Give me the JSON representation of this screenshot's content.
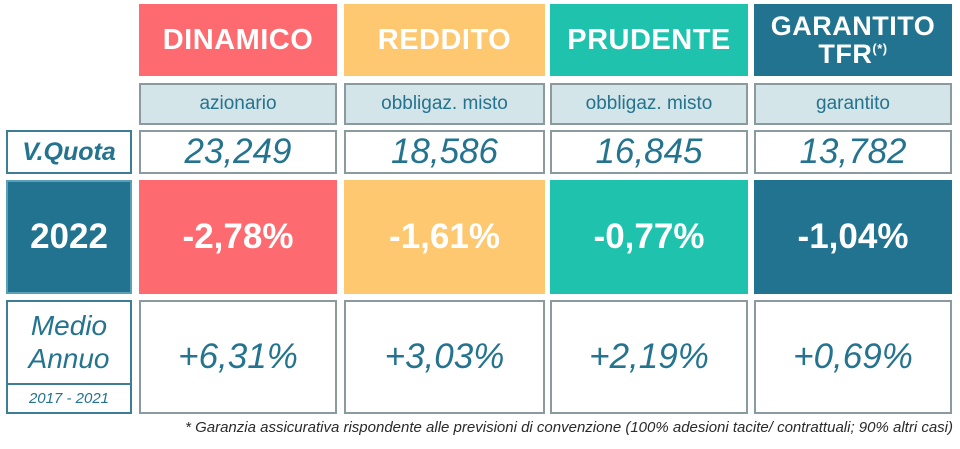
{
  "funds": [
    {
      "name": "DINAMICO",
      "type": "azionario",
      "quota": "23,249",
      "y2022": "-2,78%",
      "avg": "+6,31%"
    },
    {
      "name": "REDDITO",
      "type": "obbligaz. misto",
      "quota": "18,586",
      "y2022": "-1,61%",
      "avg": "+3,03%"
    },
    {
      "name": "PRUDENTE",
      "type": "obbligaz. misto",
      "quota": "16,845",
      "y2022": "-0,77%",
      "avg": "+2,19%"
    },
    {
      "name": "GARANTITO",
      "name_line2": "TFR",
      "name_sup": "(*)",
      "type": "garantito",
      "quota": "13,782",
      "y2022": "-1,04%",
      "avg": "+0,69%"
    }
  ],
  "rows": {
    "quota_label": "V.Quota",
    "year_label": "2022",
    "avg_label_line1": "Medio",
    "avg_label_line2": "Annuo",
    "avg_period": "2017 - 2021"
  },
  "colors": {
    "dinamico": "#fd6a70",
    "reddito": "#fec871",
    "prudente": "#1fc2ad",
    "garantito": "#22738f",
    "text_blue": "#24738f"
  },
  "footnote": "* Garanzia assicurativa rispondente alle previsioni di convenzione (100% adesioni tacite/ contrattuali; 90% altri casi)"
}
